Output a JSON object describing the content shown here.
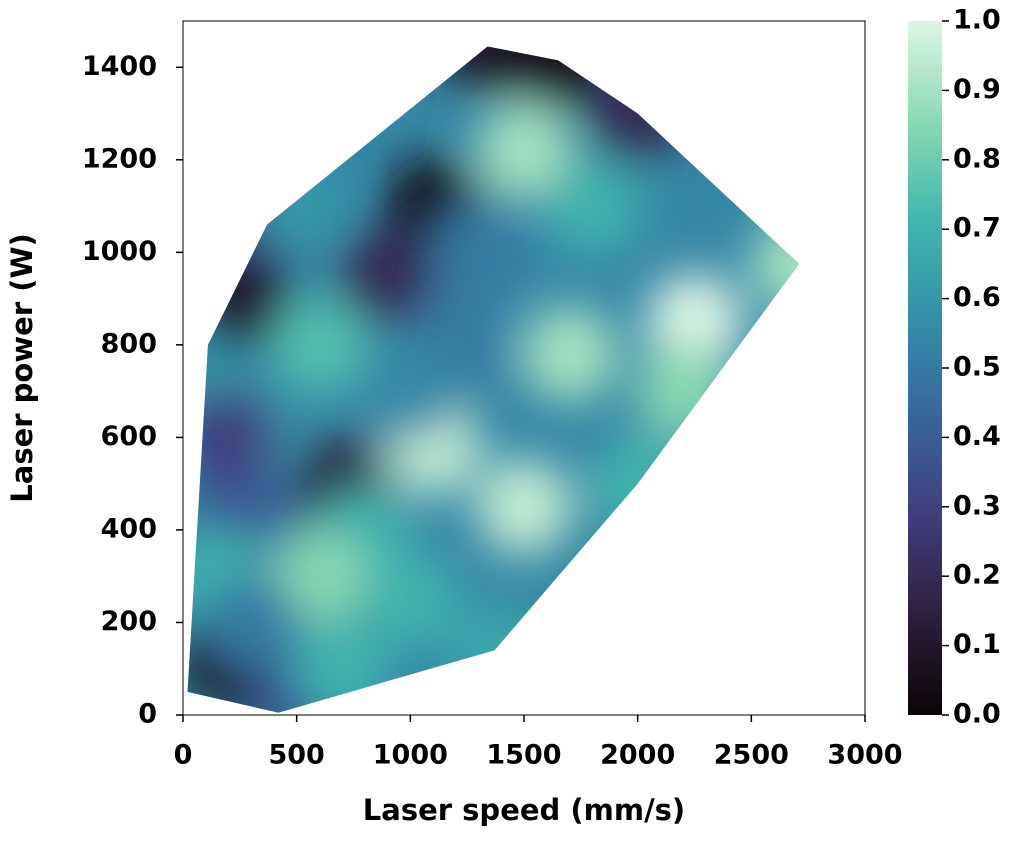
{
  "chart_data": {
    "type": "interpolated-map",
    "xlabel": "Laser speed (mm/s)",
    "ylabel": "Laser power (W)",
    "xlim": [
      0,
      3000
    ],
    "xticks": [
      0,
      500,
      1000,
      1500,
      2000,
      2500,
      3000
    ],
    "ylim": [
      0,
      1500
    ],
    "yticks": [
      0,
      200,
      400,
      600,
      800,
      1000,
      1200,
      1400
    ],
    "clim": [
      0,
      1
    ],
    "cticks": [
      {
        "value": 0,
        "label": "0.0"
      },
      0.1,
      0.2,
      0.3,
      0.4,
      0.5,
      0.6,
      0.7,
      0.8,
      0.9,
      {
        "value": 1,
        "label": "1.0"
      }
    ],
    "colormap": [
      "#0b0405",
      "#2e1e3c",
      "#413d7b",
      "#37659e",
      "#348fa7",
      "#40b7ad",
      "#8bdab2",
      "#def5e5"
    ],
    "x": [
      20,
      110,
      370,
      1340,
      1650,
      2710,
      1370,
      420,
      250,
      500,
      1100,
      900,
      1500,
      2250,
      1700,
      1800,
      2000,
      1100,
      700,
      800,
      1000,
      1500,
      2000,
      2200,
      600,
      600,
      700,
      300,
      250,
      150,
      150,
      300,
      1200,
      1000,
      1300,
      200
    ],
    "y": [
      50,
      800,
      1060,
      1445,
      1415,
      975,
      140,
      5,
      900,
      1100,
      1100,
      950,
      1220,
      850,
      780,
      1100,
      1300,
      580,
      500,
      390,
      250,
      450,
      500,
      700,
      800,
      300,
      100,
      600,
      450,
      300,
      100,
      200,
      800,
      700,
      1000,
      600
    ],
    "values": [
      0.6,
      0.6,
      0.3,
      0.1,
      0.05,
      0.9,
      0.65,
      0.4,
      0.1,
      0.6,
      0.05,
      0.2,
      0.9,
      1.0,
      0.9,
      0.7,
      0.2,
      0.95,
      0.15,
      0.7,
      0.7,
      0.95,
      0.7,
      0.85,
      0.75,
      0.85,
      0.7,
      0.6,
      0.4,
      0.7,
      0.1,
      0.5,
      0.5,
      0.55,
      0.5,
      0.3
    ]
  }
}
